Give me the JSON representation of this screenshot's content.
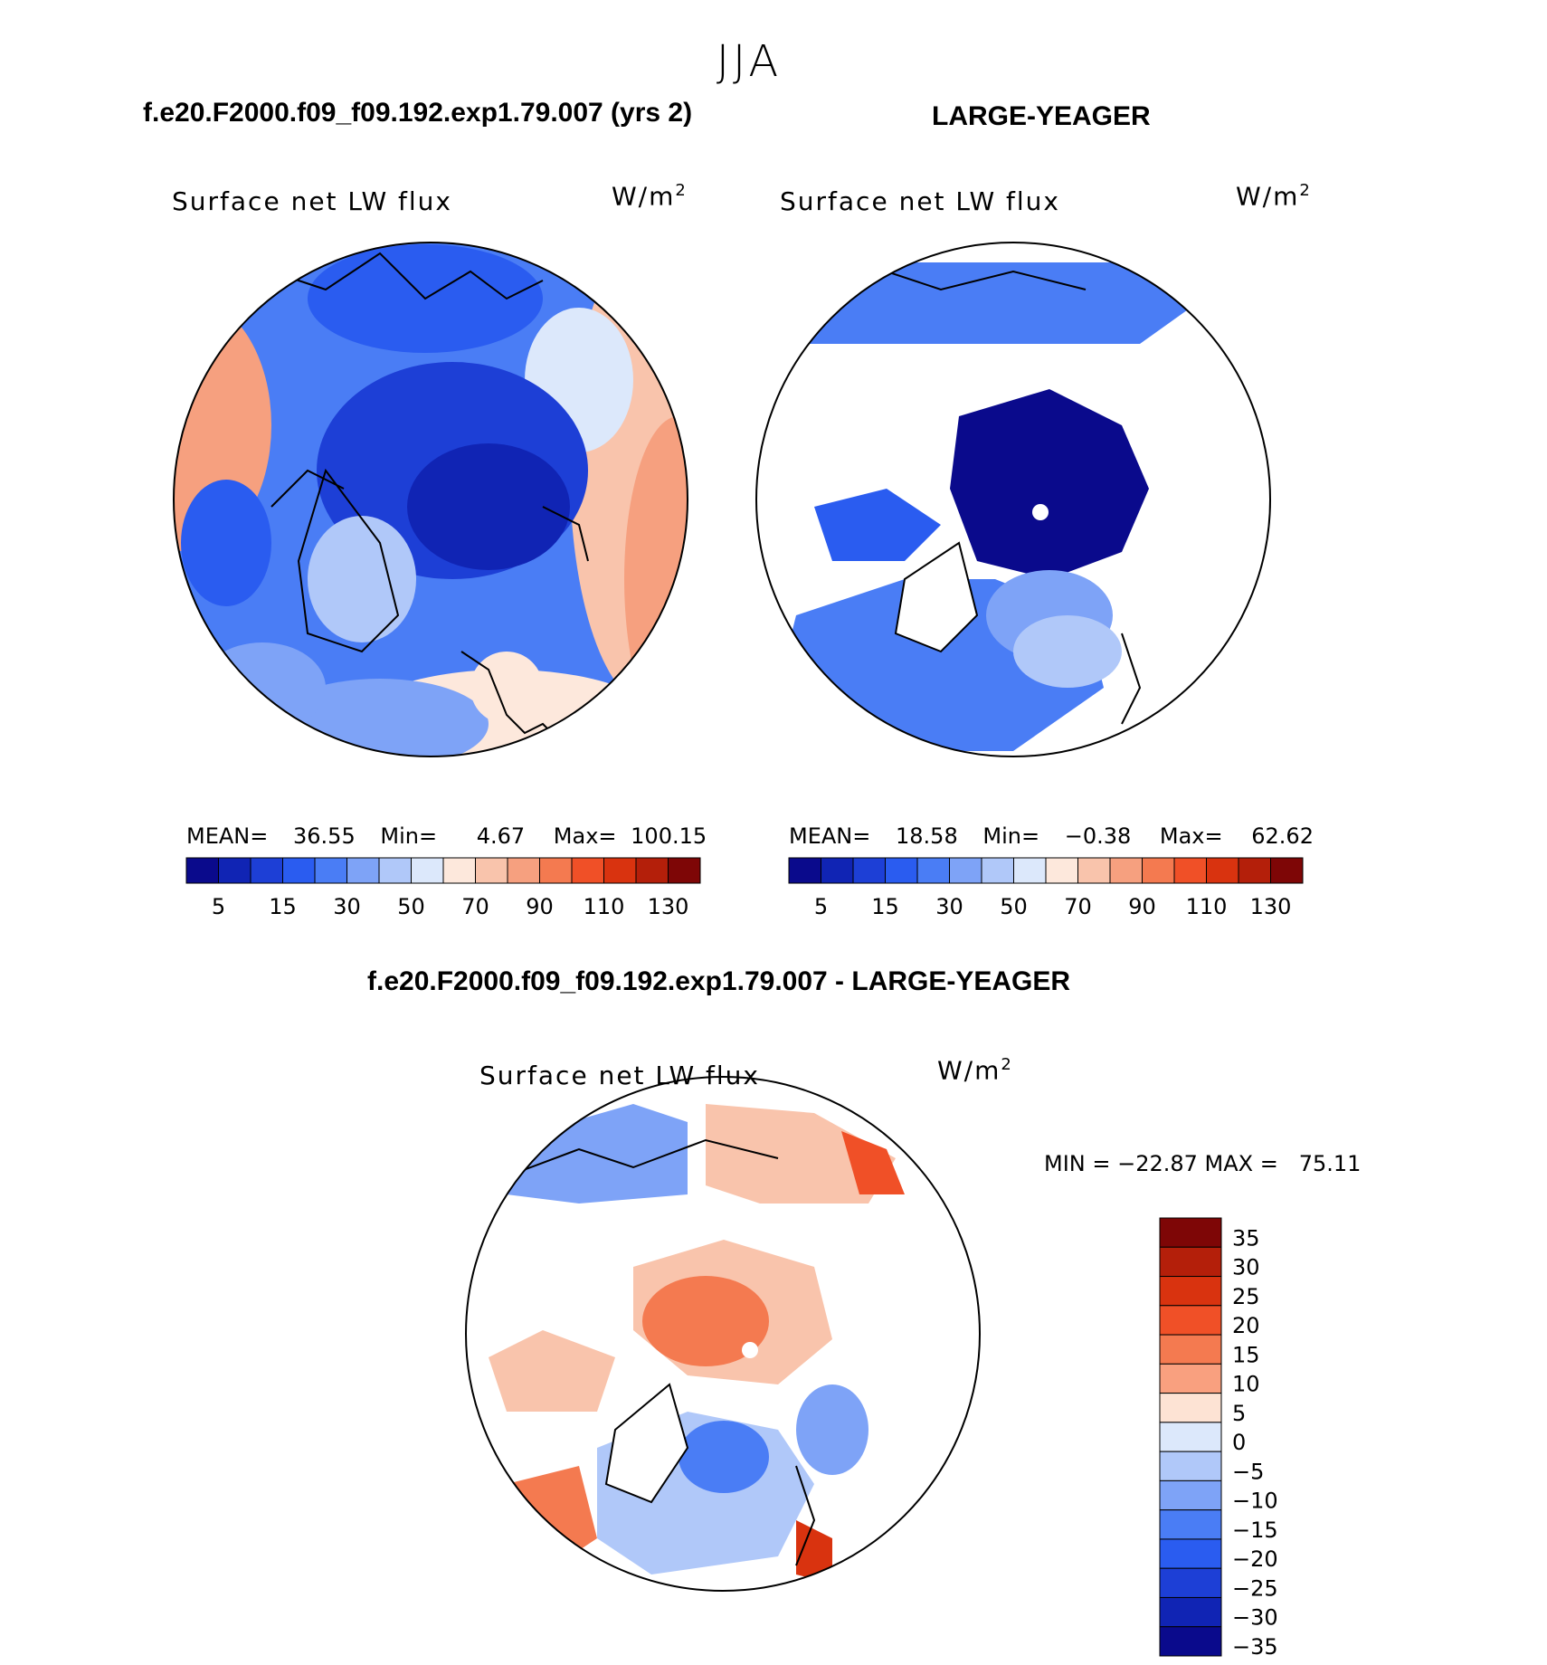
{
  "season": "JJA",
  "panels": [
    {
      "header": "f.e20.F2000.f09_f09.192.exp1.79.007 (yrs 2)",
      "label": "Surface net LW flux",
      "units": "W/m",
      "units_sup": "2",
      "mean_label": "MEAN=",
      "mean_value": "36.55",
      "min_label": "Min=",
      "min_value": "4.67",
      "max_label": "Max=",
      "max_value": "100.15"
    },
    {
      "header": "LARGE-YEAGER",
      "label": "Surface net LW flux",
      "units": "W/m",
      "units_sup": "2",
      "mean_label": "MEAN=",
      "mean_value": "18.58",
      "min_label": "Min=",
      "min_value": "−0.38",
      "max_label": "Max=",
      "max_value": "62.62"
    }
  ],
  "diff": {
    "header": "f.e20.F2000.f09_f09.192.exp1.79.007 - LARGE-YEAGER",
    "label": "Surface net LW flux",
    "units": "W/m",
    "units_sup": "2",
    "minmax": "MIN = −22.87 MAX =   75.11"
  },
  "chart_data": [
    {
      "type": "heatmap",
      "projection": "north-polar-stereographic",
      "title": "Surface net LW flux",
      "units": "W/m2",
      "stats": {
        "mean": 36.55,
        "min": 4.67,
        "max": 100.15
      },
      "colorbar": {
        "orientation": "horizontal",
        "colors": [
          "#0a0a8c",
          "#1024b4",
          "#1d3fd6",
          "#2a5cf0",
          "#4a7df5",
          "#7ea3f7",
          "#b0c8f9",
          "#dce8fb",
          "#fde8dc",
          "#f9c4ac",
          "#f6a07f",
          "#f47a50",
          "#f05027",
          "#d9330f",
          "#b41f0a",
          "#7e0606"
        ],
        "tick_labels": [
          "5",
          "15",
          "30",
          "50",
          "70",
          "90",
          "110",
          "130"
        ]
      }
    },
    {
      "type": "heatmap",
      "projection": "north-polar-stereographic",
      "title": "Surface net LW flux",
      "units": "W/m2",
      "stats": {
        "mean": 18.58,
        "min": -0.38,
        "max": 62.62
      },
      "colorbar": {
        "orientation": "horizontal",
        "colors": [
          "#0a0a8c",
          "#1024b4",
          "#1d3fd6",
          "#2a5cf0",
          "#4a7df5",
          "#7ea3f7",
          "#b0c8f9",
          "#dce8fb",
          "#fde8dc",
          "#f9c4ac",
          "#f6a07f",
          "#f47a50",
          "#f05027",
          "#d9330f",
          "#b41f0a",
          "#7e0606"
        ],
        "tick_labels": [
          "5",
          "15",
          "30",
          "50",
          "70",
          "90",
          "110",
          "130"
        ]
      }
    },
    {
      "type": "heatmap",
      "projection": "north-polar-stereographic",
      "title": "Surface net LW flux",
      "units": "W/m2",
      "stats": {
        "min": -22.87,
        "max": 75.11
      },
      "colorbar": {
        "orientation": "vertical",
        "colors_top_to_bottom": [
          "#7e0606",
          "#b41f0a",
          "#d9330f",
          "#f05027",
          "#f47a50",
          "#f9a07f",
          "#fde3d4",
          "#dce8fb",
          "#b0c8f9",
          "#7ea3f7",
          "#4a7df5",
          "#2a5cf0",
          "#1d3fd6",
          "#1024b4",
          "#0a0a8c"
        ],
        "tick_labels": [
          "35",
          "30",
          "25",
          "20",
          "15",
          "10",
          "5",
          "0",
          "−5",
          "−10",
          "−15",
          "−20",
          "−25",
          "−30",
          "−35"
        ]
      }
    }
  ]
}
